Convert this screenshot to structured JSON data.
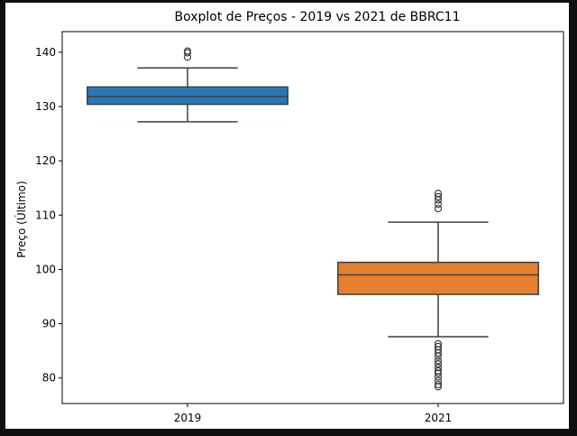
{
  "chart_data": {
    "type": "box",
    "title": "Boxplot de Preços - 2019 vs 2021 de BBRC11",
    "xlabel": "",
    "ylabel": "Preço (Último)",
    "ylim": [
      75.3,
      143.8
    ],
    "yticks": [
      80,
      90,
      100,
      110,
      120,
      130,
      140
    ],
    "categories": [
      "2019",
      "2021"
    ],
    "colors": [
      "#2878b5",
      "#e5802e"
    ],
    "grid": false,
    "boxes": [
      {
        "category": "2019",
        "whisker_low": 127.2,
        "q1": 130.4,
        "median": 131.8,
        "q3": 133.6,
        "whisker_high": 137.1,
        "outliers": [
          139.1,
          139.9,
          140.2
        ]
      },
      {
        "category": "2021",
        "whisker_low": 87.6,
        "q1": 95.4,
        "median": 99.0,
        "q3": 101.3,
        "whisker_high": 108.7,
        "outliers": [
          78.4,
          78.8,
          79.5,
          80.2,
          80.9,
          81.3,
          81.9,
          82.6,
          83.2,
          84.0,
          84.6,
          85.2,
          85.8,
          86.3,
          111.2,
          112.0,
          112.8,
          113.4,
          114.0
        ]
      }
    ]
  }
}
